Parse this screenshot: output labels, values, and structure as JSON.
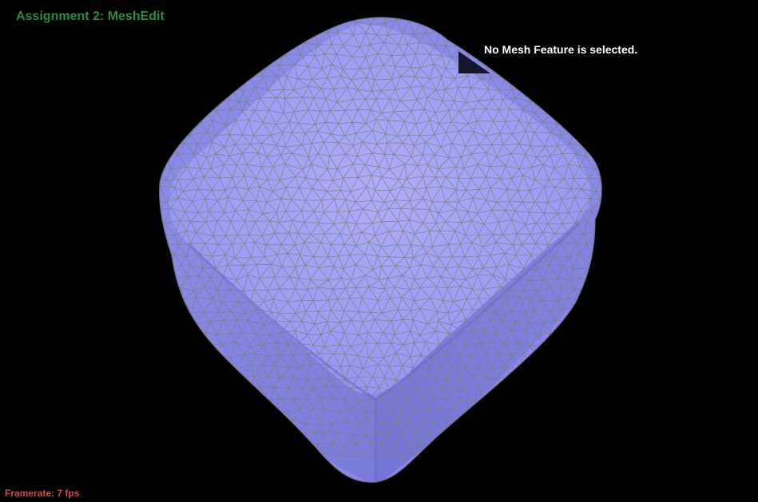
{
  "app": {
    "title": "Assignment 2: MeshEdit"
  },
  "info": {
    "selection_status": "No Mesh Feature is selected."
  },
  "status": {
    "framerate_text": "Framerate: 7 fps"
  },
  "colors": {
    "background": "#000000",
    "title": "#2e8b3a",
    "mesh_fill": "#8f8fee",
    "mesh_fill_light": "#a9a9f7",
    "mesh_fill_dark": "#7272d6",
    "wireframe": "#7d7d86",
    "framerate": "#d24a4a",
    "info_text": "#ffffff",
    "info_panel": "#161629"
  },
  "viewport": {
    "icon": "mesh-model"
  }
}
